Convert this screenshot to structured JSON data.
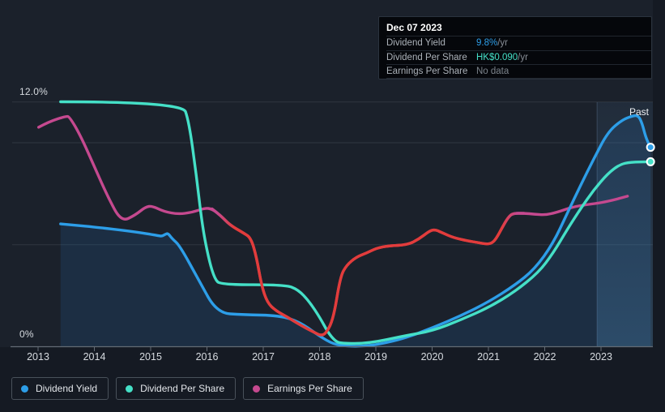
{
  "palette": {
    "background": "#151a23",
    "chart_background": "#1b212b",
    "grid": "#2f3640",
    "axis": "#636b74",
    "blue": "#2d9ee8",
    "teal": "#45e0c7",
    "pink": "#c5498f",
    "red": "#e23c3c",
    "area_fill": "rgba(40,120,190,0.16)",
    "past_top": "rgba(96,158,215,0.09)",
    "past_bottom": "rgba(96,170,225,0.24)",
    "past_edge": "rgba(150,190,230,0.22)",
    "marker_ring": "#ffffff"
  },
  "tooltip": {
    "date": "Dec 07 2023",
    "rows": [
      {
        "label": "Dividend Yield",
        "value": "9.8%",
        "suffix": " /yr"
      },
      {
        "label": "Dividend Per Share",
        "value": "HK$0.090",
        "suffix": " /yr"
      },
      {
        "label": "Earnings Per Share",
        "value": "No data",
        "suffix": ""
      }
    ]
  },
  "labels": {
    "past": "Past",
    "y_max": "12.0%",
    "y_min": "0%"
  },
  "legend": {
    "items": [
      {
        "label": "Dividend Yield",
        "color_key": "blue"
      },
      {
        "label": "Dividend Per Share",
        "color_key": "teal"
      },
      {
        "label": "Earnings Per Share",
        "color_key": "pink"
      }
    ]
  },
  "chart_data": {
    "type": "line",
    "title": "Dividend history (past)",
    "x_ticks": [
      2013,
      2014,
      2015,
      2016,
      2017,
      2018,
      2019,
      2020,
      2021,
      2022,
      2023
    ],
    "y_axis": {
      "min": 0,
      "max": 12,
      "unit": "%",
      "top_label": "12.0%",
      "bottom_label": "0%",
      "gridline_pcts": [
        12,
        10,
        5
      ]
    },
    "grid": true,
    "legend_position": "bottom-left",
    "past_region": {
      "start_year": 2022.93,
      "label": "Past"
    },
    "series": [
      {
        "name": "Dividend Yield",
        "color_key": "blue",
        "unit": "%",
        "area_fill": true,
        "end_marker": true,
        "end_value_label": "9.8% /yr",
        "points": [
          [
            2013.4,
            6.02
          ],
          [
            2013.7,
            5.95
          ],
          [
            2014.0,
            5.87
          ],
          [
            2014.63,
            5.67
          ],
          [
            2015.1,
            5.47
          ],
          [
            2015.2,
            5.41
          ],
          [
            2015.26,
            5.52
          ],
          [
            2015.31,
            5.56
          ],
          [
            2015.38,
            5.3
          ],
          [
            2015.52,
            4.95
          ],
          [
            2015.85,
            3.28
          ],
          [
            2016.18,
            1.65
          ],
          [
            2016.64,
            1.57
          ],
          [
            2017.29,
            1.53
          ],
          [
            2017.65,
            1.21
          ],
          [
            2018.01,
            0.5
          ],
          [
            2018.25,
            0.12
          ],
          [
            2018.5,
            0.02
          ],
          [
            2018.8,
            0.03
          ],
          [
            2019.09,
            0.14
          ],
          [
            2019.52,
            0.42
          ],
          [
            2020.01,
            0.93
          ],
          [
            2020.52,
            1.53
          ],
          [
            2021.01,
            2.21
          ],
          [
            2021.46,
            3.0
          ],
          [
            2021.82,
            3.8
          ],
          [
            2022.15,
            5.07
          ],
          [
            2022.4,
            6.54
          ],
          [
            2022.64,
            7.93
          ],
          [
            2022.87,
            9.21
          ],
          [
            2023.12,
            10.52
          ],
          [
            2023.37,
            11.11
          ],
          [
            2023.55,
            11.31
          ],
          [
            2023.66,
            11.35
          ],
          [
            2023.73,
            10.96
          ],
          [
            2023.79,
            10.32
          ],
          [
            2023.85,
            9.92
          ],
          [
            2023.88,
            9.78
          ]
        ]
      },
      {
        "name": "Dividend Per Share",
        "color_key": "teal",
        "unit": "HK$",
        "hkd_per_axis_unit": 0.01,
        "area_fill": false,
        "end_marker": true,
        "end_value_label": "HK$0.090 /yr",
        "points": [
          [
            2013.4,
            12.01
          ],
          [
            2015.56,
            12.01
          ],
          [
            2015.68,
            11.03
          ],
          [
            2015.81,
            8.45
          ],
          [
            2015.92,
            5.87
          ],
          [
            2016.04,
            4.19
          ],
          [
            2016.14,
            3.32
          ],
          [
            2016.24,
            3.04
          ],
          [
            2017.39,
            3.04
          ],
          [
            2017.62,
            2.8
          ],
          [
            2017.82,
            2.21
          ],
          [
            2018.01,
            1.41
          ],
          [
            2018.15,
            0.7
          ],
          [
            2018.27,
            0.3
          ],
          [
            2018.37,
            0.16
          ],
          [
            2018.87,
            0.16
          ],
          [
            2019.52,
            0.54
          ],
          [
            2020.01,
            0.78
          ],
          [
            2020.52,
            1.33
          ],
          [
            2021.01,
            1.93
          ],
          [
            2021.46,
            2.68
          ],
          [
            2021.89,
            3.64
          ],
          [
            2022.15,
            4.59
          ],
          [
            2022.4,
            5.75
          ],
          [
            2022.64,
            6.78
          ],
          [
            2022.87,
            7.69
          ],
          [
            2023.12,
            8.49
          ],
          [
            2023.33,
            8.93
          ],
          [
            2023.52,
            9.05
          ],
          [
            2023.88,
            9.07
          ]
        ]
      },
      {
        "name": "Earnings Per Share",
        "color_key": "pink",
        "unit": "axis %",
        "area_fill": false,
        "end_marker": false,
        "end_value_label": "No data",
        "red_span_years": [
          2016.09,
          2021.63
        ],
        "gradient_stop_years": [
          2016.18,
          2016.48,
          2021.22,
          2021.5
        ],
        "points": [
          [
            2013.01,
            10.76
          ],
          [
            2013.19,
            11.03
          ],
          [
            2013.5,
            11.31
          ],
          [
            2013.56,
            11.27
          ],
          [
            2013.76,
            10.32
          ],
          [
            2014.01,
            8.77
          ],
          [
            2014.24,
            7.34
          ],
          [
            2014.48,
            6.12
          ],
          [
            2014.73,
            6.46
          ],
          [
            2014.91,
            6.86
          ],
          [
            2015.03,
            6.9
          ],
          [
            2015.24,
            6.62
          ],
          [
            2015.49,
            6.5
          ],
          [
            2015.73,
            6.58
          ],
          [
            2015.96,
            6.8
          ],
          [
            2016.09,
            6.76
          ],
          [
            2016.25,
            6.42
          ],
          [
            2016.4,
            5.98
          ],
          [
            2016.64,
            5.59
          ],
          [
            2016.78,
            5.35
          ],
          [
            2016.88,
            4.39
          ],
          [
            2016.97,
            3.0
          ],
          [
            2017.07,
            2.17
          ],
          [
            2017.22,
            1.77
          ],
          [
            2017.43,
            1.45
          ],
          [
            2017.69,
            1.01
          ],
          [
            2017.91,
            0.7
          ],
          [
            2018.02,
            0.54
          ],
          [
            2018.12,
            0.66
          ],
          [
            2018.25,
            1.41
          ],
          [
            2018.37,
            3.44
          ],
          [
            2018.48,
            4.0
          ],
          [
            2018.65,
            4.39
          ],
          [
            2018.83,
            4.59
          ],
          [
            2019.01,
            4.83
          ],
          [
            2019.23,
            4.95
          ],
          [
            2019.56,
            4.99
          ],
          [
            2019.76,
            5.27
          ],
          [
            2019.95,
            5.67
          ],
          [
            2020.05,
            5.75
          ],
          [
            2020.21,
            5.55
          ],
          [
            2020.38,
            5.35
          ],
          [
            2020.63,
            5.19
          ],
          [
            2020.81,
            5.11
          ],
          [
            2020.96,
            5.03
          ],
          [
            2021.06,
            5.07
          ],
          [
            2021.14,
            5.31
          ],
          [
            2021.25,
            5.87
          ],
          [
            2021.35,
            6.34
          ],
          [
            2021.43,
            6.54
          ],
          [
            2021.63,
            6.54
          ],
          [
            2021.82,
            6.5
          ],
          [
            2022.01,
            6.46
          ],
          [
            2022.21,
            6.58
          ],
          [
            2022.5,
            6.86
          ],
          [
            2022.78,
            6.98
          ],
          [
            2023.0,
            7.06
          ],
          [
            2023.26,
            7.22
          ],
          [
            2023.47,
            7.38
          ]
        ]
      }
    ]
  }
}
